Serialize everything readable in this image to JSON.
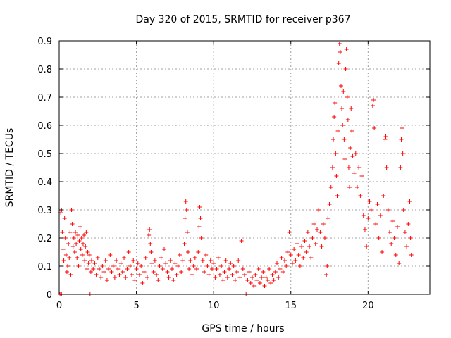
{
  "chart_data": {
    "type": "scatter",
    "title": "Day 320 of 2015, SRMTID for receiver p367",
    "xlabel": "GPS time / hours",
    "ylabel": "SRMTID / TECUs",
    "xlim": [
      0,
      24
    ],
    "ylim": [
      0,
      0.9
    ],
    "xticks": [
      0,
      5,
      10,
      15,
      20
    ],
    "yticks": [
      0,
      0.1,
      0.2,
      0.3,
      0.4,
      0.5,
      0.6,
      0.7,
      0.8,
      0.9
    ],
    "grid": true,
    "marker": "plus",
    "color": "#ff0000",
    "series": [
      {
        "name": "SRMTID",
        "points": [
          [
            0.05,
            0.0
          ],
          [
            0.15,
            0.0
          ],
          [
            0.1,
            0.29
          ],
          [
            0.15,
            0.3
          ],
          [
            0.2,
            0.22
          ],
          [
            0.25,
            0.16
          ],
          [
            0.3,
            0.12
          ],
          [
            0.35,
            0.27
          ],
          [
            0.4,
            0.2
          ],
          [
            0.45,
            0.14
          ],
          [
            0.5,
            0.08
          ],
          [
            0.55,
            0.1
          ],
          [
            0.6,
            0.18
          ],
          [
            0.65,
            0.13
          ],
          [
            0.7,
            0.22
          ],
          [
            0.75,
            0.07
          ],
          [
            0.8,
            0.3
          ],
          [
            0.85,
            0.25
          ],
          [
            0.9,
            0.17
          ],
          [
            0.95,
            0.2
          ],
          [
            1.0,
            0.15
          ],
          [
            1.05,
            0.22
          ],
          [
            1.1,
            0.18
          ],
          [
            1.15,
            0.13
          ],
          [
            1.2,
            0.21
          ],
          [
            1.25,
            0.1
          ],
          [
            1.3,
            0.19
          ],
          [
            1.35,
            0.24
          ],
          [
            1.4,
            0.16
          ],
          [
            1.45,
            0.2
          ],
          [
            1.5,
            0.14
          ],
          [
            1.55,
            0.18
          ],
          [
            1.6,
            0.21
          ],
          [
            1.65,
            0.12
          ],
          [
            1.7,
            0.17
          ],
          [
            1.75,
            0.22
          ],
          [
            1.8,
            0.09
          ],
          [
            1.85,
            0.15
          ],
          [
            1.9,
            0.11
          ],
          [
            1.95,
            0.14
          ],
          [
            2.0,
            0.0
          ],
          [
            2.05,
            0.08
          ],
          [
            2.1,
            0.12
          ],
          [
            2.2,
            0.09
          ],
          [
            2.3,
            0.11
          ],
          [
            2.4,
            0.07
          ],
          [
            2.5,
            0.13
          ],
          [
            2.6,
            0.09
          ],
          [
            2.7,
            0.06
          ],
          [
            2.8,
            0.1
          ],
          [
            2.9,
            0.08
          ],
          [
            3.0,
            0.12
          ],
          [
            3.1,
            0.05
          ],
          [
            3.2,
            0.09
          ],
          [
            3.3,
            0.14
          ],
          [
            3.4,
            0.08
          ],
          [
            3.5,
            0.1
          ],
          [
            3.6,
            0.06
          ],
          [
            3.7,
            0.12
          ],
          [
            3.8,
            0.09
          ],
          [
            3.9,
            0.07
          ],
          [
            4.0,
            0.11
          ],
          [
            4.1,
            0.08
          ],
          [
            4.2,
            0.13
          ],
          [
            4.3,
            0.06
          ],
          [
            4.4,
            0.09
          ],
          [
            4.5,
            0.15
          ],
          [
            4.6,
            0.1
          ],
          [
            4.7,
            0.07
          ],
          [
            4.8,
            0.12
          ],
          [
            4.9,
            0.05
          ],
          [
            5.0,
            0.09
          ],
          [
            5.1,
            0.11
          ],
          [
            5.2,
            0.07
          ],
          [
            5.3,
            0.1
          ],
          [
            5.4,
            0.04
          ],
          [
            5.5,
            0.08
          ],
          [
            5.6,
            0.13
          ],
          [
            5.7,
            0.06
          ],
          [
            5.8,
            0.21
          ],
          [
            5.85,
            0.23
          ],
          [
            5.9,
            0.18
          ],
          [
            5.95,
            0.15
          ],
          [
            6.0,
            0.11
          ],
          [
            6.1,
            0.08
          ],
          [
            6.2,
            0.12
          ],
          [
            6.3,
            0.07
          ],
          [
            6.4,
            0.05
          ],
          [
            6.5,
            0.1
          ],
          [
            6.6,
            0.13
          ],
          [
            6.7,
            0.09
          ],
          [
            6.8,
            0.16
          ],
          [
            6.9,
            0.11
          ],
          [
            7.0,
            0.08
          ],
          [
            7.1,
            0.06
          ],
          [
            7.2,
            0.12
          ],
          [
            7.3,
            0.09
          ],
          [
            7.4,
            0.05
          ],
          [
            7.5,
            0.11
          ],
          [
            7.6,
            0.07
          ],
          [
            7.7,
            0.1
          ],
          [
            7.8,
            0.14
          ],
          [
            7.9,
            0.08
          ],
          [
            8.0,
            0.12
          ],
          [
            8.1,
            0.18
          ],
          [
            8.15,
            0.27
          ],
          [
            8.2,
            0.33
          ],
          [
            8.25,
            0.3
          ],
          [
            8.3,
            0.22
          ],
          [
            8.35,
            0.15
          ],
          [
            8.4,
            0.09
          ],
          [
            8.5,
            0.12
          ],
          [
            8.6,
            0.07
          ],
          [
            8.7,
            0.1
          ],
          [
            8.8,
            0.13
          ],
          [
            8.9,
            0.09
          ],
          [
            9.0,
            0.15
          ],
          [
            9.05,
            0.24
          ],
          [
            9.1,
            0.31
          ],
          [
            9.15,
            0.27
          ],
          [
            9.2,
            0.2
          ],
          [
            9.3,
            0.12
          ],
          [
            9.4,
            0.08
          ],
          [
            9.5,
            0.14
          ],
          [
            9.6,
            0.1
          ],
          [
            9.7,
            0.07
          ],
          [
            9.8,
            0.12
          ],
          [
            9.9,
            0.09
          ],
          [
            10.0,
            0.11
          ],
          [
            10.1,
            0.06
          ],
          [
            10.2,
            0.09
          ],
          [
            10.3,
            0.13
          ],
          [
            10.4,
            0.07
          ],
          [
            10.5,
            0.1
          ],
          [
            10.6,
            0.05
          ],
          [
            10.7,
            0.08
          ],
          [
            10.8,
            0.12
          ],
          [
            10.9,
            0.06
          ],
          [
            11.0,
            0.09
          ],
          [
            11.1,
            0.11
          ],
          [
            11.2,
            0.07
          ],
          [
            11.3,
            0.1
          ],
          [
            11.4,
            0.05
          ],
          [
            11.5,
            0.08
          ],
          [
            11.6,
            0.12
          ],
          [
            11.7,
            0.06
          ],
          [
            11.8,
            0.19
          ],
          [
            11.9,
            0.09
          ],
          [
            12.0,
            0.07
          ],
          [
            12.1,
            0.0
          ],
          [
            12.2,
            0.05
          ],
          [
            12.3,
            0.08
          ],
          [
            12.4,
            0.04
          ],
          [
            12.5,
            0.06
          ],
          [
            12.6,
            0.03
          ],
          [
            12.7,
            0.07
          ],
          [
            12.8,
            0.05
          ],
          [
            12.9,
            0.09
          ],
          [
            13.0,
            0.04
          ],
          [
            13.1,
            0.06
          ],
          [
            13.2,
            0.08
          ],
          [
            13.3,
            0.03
          ],
          [
            13.4,
            0.06
          ],
          [
            13.5,
            0.05
          ],
          [
            13.6,
            0.09
          ],
          [
            13.7,
            0.04
          ],
          [
            13.8,
            0.07
          ],
          [
            13.9,
            0.05
          ],
          [
            14.0,
            0.08
          ],
          [
            14.1,
            0.11
          ],
          [
            14.2,
            0.06
          ],
          [
            14.3,
            0.09
          ],
          [
            14.4,
            0.13
          ],
          [
            14.5,
            0.08
          ],
          [
            14.6,
            0.12
          ],
          [
            14.7,
            0.1
          ],
          [
            14.8,
            0.15
          ],
          [
            14.9,
            0.22
          ],
          [
            15.0,
            0.14
          ],
          [
            15.1,
            0.11
          ],
          [
            15.2,
            0.16
          ],
          [
            15.3,
            0.12
          ],
          [
            15.4,
            0.18
          ],
          [
            15.5,
            0.14
          ],
          [
            15.6,
            0.1
          ],
          [
            15.7,
            0.17
          ],
          [
            15.8,
            0.13
          ],
          [
            15.9,
            0.19
          ],
          [
            16.0,
            0.15
          ],
          [
            16.1,
            0.22
          ],
          [
            16.2,
            0.17
          ],
          [
            16.3,
            0.13
          ],
          [
            16.4,
            0.2
          ],
          [
            16.5,
            0.25
          ],
          [
            16.6,
            0.18
          ],
          [
            16.7,
            0.23
          ],
          [
            16.8,
            0.3
          ],
          [
            16.9,
            0.22
          ],
          [
            17.0,
            0.17
          ],
          [
            17.1,
            0.25
          ],
          [
            17.2,
            0.2
          ],
          [
            17.3,
            0.07
          ],
          [
            17.35,
            0.1
          ],
          [
            17.4,
            0.27
          ],
          [
            17.5,
            0.32
          ],
          [
            17.6,
            0.38
          ],
          [
            17.7,
            0.45
          ],
          [
            17.75,
            0.55
          ],
          [
            17.8,
            0.63
          ],
          [
            17.85,
            0.68
          ],
          [
            17.9,
            0.5
          ],
          [
            17.95,
            0.42
          ],
          [
            18.0,
            0.35
          ],
          [
            18.05,
            0.58
          ],
          [
            18.1,
            0.82
          ],
          [
            18.15,
            0.89
          ],
          [
            18.2,
            0.86
          ],
          [
            18.25,
            0.74
          ],
          [
            18.3,
            0.66
          ],
          [
            18.35,
            0.6
          ],
          [
            18.4,
            0.72
          ],
          [
            18.45,
            0.55
          ],
          [
            18.5,
            0.48
          ],
          [
            18.55,
            0.8
          ],
          [
            18.6,
            0.87
          ],
          [
            18.65,
            0.7
          ],
          [
            18.7,
            0.62
          ],
          [
            18.75,
            0.45
          ],
          [
            18.8,
            0.38
          ],
          [
            18.85,
            0.52
          ],
          [
            18.9,
            0.66
          ],
          [
            18.95,
            0.58
          ],
          [
            19.0,
            0.49
          ],
          [
            19.1,
            0.43
          ],
          [
            19.2,
            0.5
          ],
          [
            19.3,
            0.38
          ],
          [
            19.4,
            0.45
          ],
          [
            19.5,
            0.35
          ],
          [
            19.6,
            0.42
          ],
          [
            19.7,
            0.28
          ],
          [
            19.8,
            0.23
          ],
          [
            19.9,
            0.17
          ],
          [
            20.0,
            0.27
          ],
          [
            20.1,
            0.33
          ],
          [
            20.2,
            0.3
          ],
          [
            20.3,
            0.67
          ],
          [
            20.35,
            0.69
          ],
          [
            20.4,
            0.59
          ],
          [
            20.5,
            0.25
          ],
          [
            20.6,
            0.32
          ],
          [
            20.7,
            0.2
          ],
          [
            20.8,
            0.28
          ],
          [
            20.9,
            0.15
          ],
          [
            21.0,
            0.35
          ],
          [
            21.1,
            0.55
          ],
          [
            21.15,
            0.56
          ],
          [
            21.2,
            0.45
          ],
          [
            21.3,
            0.3
          ],
          [
            21.4,
            0.22
          ],
          [
            21.5,
            0.18
          ],
          [
            21.6,
            0.26
          ],
          [
            21.7,
            0.2
          ],
          [
            21.8,
            0.14
          ],
          [
            21.9,
            0.24
          ],
          [
            22.0,
            0.11
          ],
          [
            22.1,
            0.45
          ],
          [
            22.15,
            0.55
          ],
          [
            22.2,
            0.59
          ],
          [
            22.25,
            0.5
          ],
          [
            22.3,
            0.3
          ],
          [
            22.4,
            0.22
          ],
          [
            22.5,
            0.17
          ],
          [
            22.6,
            0.25
          ],
          [
            22.7,
            0.33
          ],
          [
            22.75,
            0.2
          ],
          [
            22.8,
            0.14
          ]
        ]
      }
    ]
  }
}
